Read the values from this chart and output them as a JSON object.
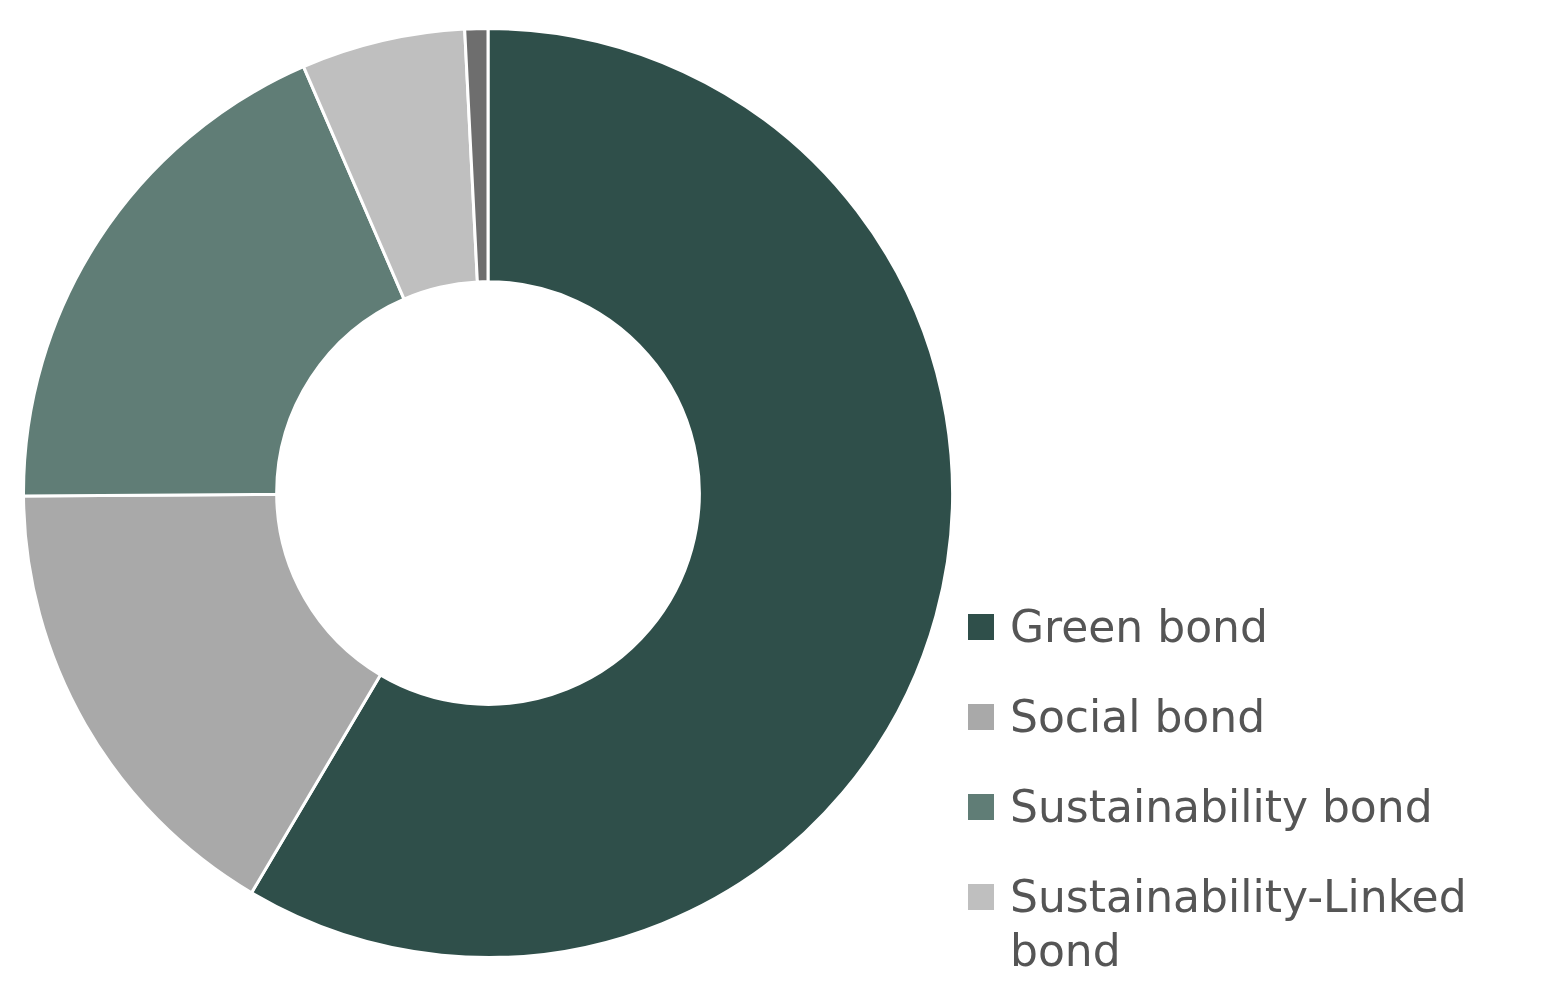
{
  "chart_data": {
    "type": "donut",
    "categories": [
      "Green bond",
      "Social bond",
      "Sustainability bond",
      "Sustainability-Linked bond",
      null
    ],
    "values": [
      58.5,
      16.4,
      18.6,
      5.7,
      0.8
    ],
    "colors": [
      "#2f4f4a",
      "#a9a9a9",
      "#607d76",
      "#bfbfbf",
      "#6e6e6e"
    ],
    "legend": "right"
  }
}
